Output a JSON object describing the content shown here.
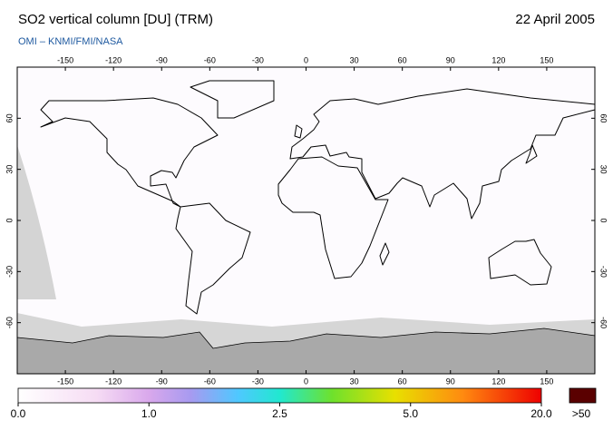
{
  "header": {
    "title": "SO2 vertical column [DU] (TRM)",
    "date": "22 April 2005",
    "credit": "OMI  –  KNMI/FMI/NASA"
  },
  "map": {
    "xlim": [
      -180,
      180
    ],
    "ylim": [
      -90,
      90
    ],
    "xticks": [
      -150,
      -120,
      -90,
      -60,
      -30,
      0,
      30,
      60,
      90,
      120,
      150
    ],
    "yticks": [
      60,
      30,
      0,
      -30,
      -60
    ]
  },
  "colorbar": {
    "ticks": [
      {
        "value": 0,
        "label": "0.0"
      },
      {
        "value": 1,
        "label": "1.0"
      },
      {
        "value": 2.5,
        "label": "2.5"
      },
      {
        "value": 5,
        "label": "5.0"
      },
      {
        "value": 20,
        "label": "20.0"
      }
    ],
    "overflow": ">50"
  }
}
